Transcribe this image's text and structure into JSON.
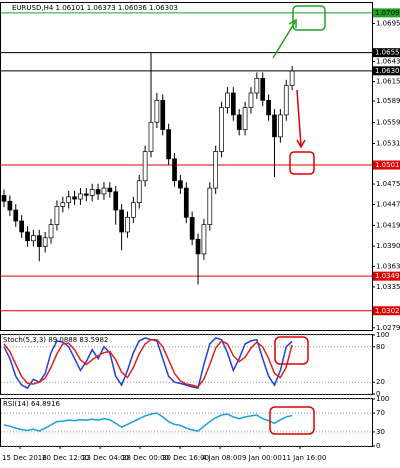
{
  "chart_data": [
    {
      "type": "candlestick",
      "title": "EURUSD,H4 1.06101 1.06373 1.06036 1.06303",
      "open": [
        1.046,
        1.0452,
        1.044,
        1.0425,
        1.041,
        1.0398,
        1.0405,
        1.039,
        1.0402,
        1.042,
        1.0445,
        1.045,
        1.0458,
        1.0455,
        1.0462,
        1.046,
        1.0468,
        1.0462,
        1.047,
        1.0465,
        1.044,
        1.041,
        1.043,
        1.045,
        1.048,
        1.052,
        1.056,
        1.059,
        1.055,
        1.051,
        1.048,
        1.047,
        1.043,
        1.04,
        1.038,
        1.042,
        1.047,
        1.052,
        1.058,
        1.06,
        1.057,
        1.055,
        1.058,
        1.06,
        1.062,
        1.059,
        1.057,
        1.054,
        1.057,
        1.061
      ],
      "high": [
        1.0468,
        1.046,
        1.0448,
        1.0433,
        1.0418,
        1.0413,
        1.0413,
        1.041,
        1.0428,
        1.0453,
        1.0458,
        1.0466,
        1.0466,
        1.047,
        1.047,
        1.0476,
        1.0476,
        1.0478,
        1.0478,
        1.0473,
        1.0448,
        1.0438,
        1.0458,
        1.0488,
        1.0528,
        1.0655,
        1.06,
        1.0598,
        1.0558,
        1.0518,
        1.0488,
        1.0478,
        1.0438,
        1.0408,
        1.0428,
        1.0478,
        1.0528,
        1.0588,
        1.0608,
        1.0608,
        1.0578,
        1.0588,
        1.0608,
        1.0628,
        1.0628,
        1.0598,
        1.0578,
        1.0578,
        1.0618,
        1.0637
      ],
      "low": [
        1.0444,
        1.0432,
        1.0417,
        1.0402,
        1.039,
        1.039,
        1.037,
        1.0382,
        1.0394,
        1.0412,
        1.0437,
        1.0442,
        1.0447,
        1.0447,
        1.0452,
        1.0452,
        1.0454,
        1.0454,
        1.0457,
        1.042,
        1.0385,
        1.0402,
        1.0422,
        1.0442,
        1.0472,
        1.0512,
        1.0552,
        1.0542,
        1.0502,
        1.0472,
        1.0462,
        1.0422,
        1.0392,
        1.0338,
        1.0372,
        1.0412,
        1.0462,
        1.0512,
        1.0572,
        1.0562,
        1.0542,
        1.0542,
        1.0572,
        1.0592,
        1.0582,
        1.0562,
        1.0485,
        1.0532,
        1.0562,
        1.0604
      ],
      "close": [
        1.0452,
        1.044,
        1.0425,
        1.041,
        1.0398,
        1.0405,
        1.039,
        1.0402,
        1.042,
        1.0445,
        1.045,
        1.0458,
        1.0455,
        1.0462,
        1.046,
        1.0468,
        1.0462,
        1.047,
        1.0465,
        1.044,
        1.041,
        1.043,
        1.045,
        1.048,
        1.052,
        1.056,
        1.059,
        1.055,
        1.051,
        1.048,
        1.047,
        1.043,
        1.04,
        1.038,
        1.042,
        1.047,
        1.052,
        1.058,
        1.06,
        1.057,
        1.055,
        1.058,
        1.06,
        1.062,
        1.059,
        1.057,
        1.054,
        1.057,
        1.061,
        1.063
      ],
      "ylim": [
        1.0276,
        1.0723
      ],
      "yticks": [
        1.06951,
        {
          "value": 1.0643,
          "label": "1.06430"
        },
        1.06155,
        {
          "value": 1.0589,
          "label": "1.05890"
        },
        1.05595,
        {
          "value": 1.0531,
          "label": "1.05310"
        },
        1.04755,
        1.04475,
        {
          "value": 1.0419,
          "label": "1.04190"
        },
        1.03905,
        {
          "value": 1.0363,
          "label": "1.03630"
        },
        {
          "value": 1.0335,
          "label": "1.03350"
        },
        {
          "value": 1.0279,
          "label": "1.02790"
        }
      ],
      "levels": [
        {
          "value": 1.07095,
          "color": "#22a022"
        },
        {
          "value": 1.06551,
          "color": "#000000"
        },
        {
          "value": 1.06303,
          "color": "#000000"
        },
        {
          "value": 1.05015,
          "color": "#e00000"
        },
        {
          "value": 1.03496,
          "color": "#e00000"
        },
        {
          "value": 1.03023,
          "color": "#e00000"
        }
      ]
    },
    {
      "type": "line",
      "title": "Stoch(5,3,3) 89.0888 83.5982",
      "series": [
        {
          "color": "#2040d8",
          "values": [
            80,
            60,
            30,
            15,
            10,
            25,
            20,
            35,
            70,
            90,
            88,
            80,
            60,
            40,
            55,
            75,
            60,
            80,
            70,
            30,
            15,
            40,
            70,
            90,
            95,
            92,
            90,
            60,
            30,
            20,
            18,
            15,
            12,
            10,
            50,
            85,
            95,
            92,
            70,
            40,
            60,
            85,
            90,
            92,
            60,
            30,
            15,
            40,
            80,
            89.0888
          ]
        },
        {
          "color": "#e02020",
          "values": [
            85,
            72,
            50,
            30,
            18,
            17,
            20,
            27,
            45,
            68,
            85,
            86,
            75,
            58,
            50,
            58,
            65,
            70,
            72,
            58,
            37,
            28,
            45,
            68,
            85,
            92,
            92,
            80,
            58,
            35,
            22,
            17,
            15,
            12,
            25,
            50,
            78,
            90,
            85,
            65,
            55,
            62,
            78,
            88,
            80,
            60,
            35,
            28,
            45,
            83.5982
          ]
        }
      ],
      "ylim": [
        0,
        100
      ],
      "yticks": [
        100,
        80,
        20,
        0
      ]
    },
    {
      "type": "line",
      "title": "RSI(14) 64.8916",
      "series": [
        {
          "color": "#1aa0e0",
          "values": [
            45,
            42,
            38,
            35,
            33,
            36,
            32,
            38,
            45,
            52,
            53,
            55,
            54,
            56,
            55,
            57,
            55,
            58,
            56,
            48,
            40,
            46,
            52,
            58,
            64,
            68,
            70,
            62,
            52,
            46,
            44,
            38,
            34,
            32,
            42,
            52,
            60,
            66,
            68,
            62,
            58,
            62,
            64,
            66,
            58,
            54,
            48,
            56,
            62,
            64.8916
          ]
        }
      ],
      "ylim": [
        0,
        100
      ],
      "yticks": [
        100,
        70,
        30,
        0
      ],
      "x_labels": [
        "15 Dec 2016",
        "20 Dec 12:00",
        "23 Dec 04:00",
        "28 Dec 00:00",
        "30 Dec 16:00",
        "4 Jan 08:00",
        "9 Jan 00:00",
        "11 Jan 16:00"
      ]
    }
  ]
}
